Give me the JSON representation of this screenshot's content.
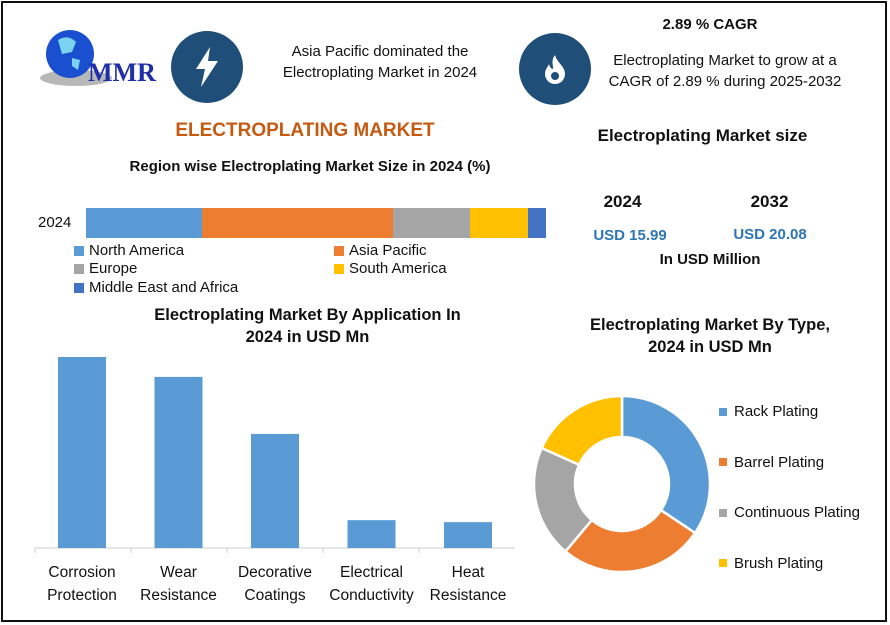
{
  "logo": {
    "text": "MMR"
  },
  "header": {
    "dominance_text": "Asia Pacific dominated the Electroplating Market in 2024",
    "cagr_title": "2.89 % CAGR",
    "cagr_text": "Electroplating Market to grow at a CAGR of 2.89 % during 2025-2032",
    "icons": [
      "lightning-icon",
      "flame-icon"
    ]
  },
  "main_title": "ELECTROPLATING MARKET",
  "market_size": {
    "title": "Electroplating Market size",
    "year1": "2024",
    "year2": "2032",
    "value1": "USD 15.99",
    "value2": "USD 20.08",
    "unit": "In USD Million"
  },
  "colors": {
    "title": "#c55a11",
    "value": "#2e75b6",
    "icon_bg": "#1f4e79"
  },
  "chart_data": [
    {
      "type": "bar",
      "orientation": "horizontal-stacked",
      "title": "Region wise Electroplating Market Size in 2024 (%)",
      "categories": [
        "2024"
      ],
      "series": [
        {
          "name": "North America",
          "values": [
            25.2
          ],
          "color": "#5b9bd5"
        },
        {
          "name": "Asia Pacific",
          "values": [
            41.5
          ],
          "color": "#ed7d31"
        },
        {
          "name": "Europe",
          "values": [
            16.7
          ],
          "color": "#a5a5a5"
        },
        {
          "name": "South America",
          "values": [
            12.6
          ],
          "color": "#ffc000"
        },
        {
          "name": "Middle East and Africa",
          "values": [
            4.0
          ],
          "color": "#4472c4"
        }
      ],
      "legend": "bottom"
    },
    {
      "type": "bar",
      "title": "Electroplating Market By Application In 2024 in USD Mn",
      "categories": [
        "Corrosion Protection",
        "Wear Resistance",
        "Decorative Coatings",
        "Electrical Conductivity",
        "Heat Resistance"
      ],
      "values": [
        5.76,
        5.16,
        3.44,
        0.84,
        0.78
      ],
      "color": "#5b9bd5"
    },
    {
      "type": "pie",
      "donut": true,
      "title": "Electroplating Market By Type, 2024 in USD Mn",
      "labels": [
        "Rack Plating",
        "Barrel Plating",
        "Continuous Plating",
        "Brush Plating"
      ],
      "values": [
        34.4,
        26.7,
        20.6,
        18.3
      ],
      "colors": [
        "#5b9bd5",
        "#ed7d31",
        "#a5a5a5",
        "#ffc000"
      ],
      "legend": "right"
    }
  ]
}
